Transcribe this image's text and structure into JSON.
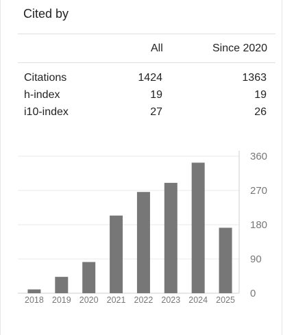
{
  "panel": {
    "title": "Cited by",
    "columns": [
      "All",
      "Since 2020"
    ],
    "rows": [
      {
        "label": "Citations",
        "all": "1424",
        "since": "1363"
      },
      {
        "label": "h-index",
        "all": "19",
        "since": "19"
      },
      {
        "label": "i10-index",
        "all": "27",
        "since": "26"
      }
    ]
  },
  "chart_data": {
    "type": "bar",
    "categories": [
      "2018",
      "2019",
      "2020",
      "2021",
      "2022",
      "2023",
      "2024",
      "2025"
    ],
    "values": [
      10,
      43,
      82,
      204,
      266,
      290,
      343,
      172
    ],
    "ylim": [
      0,
      360
    ],
    "yticks": [
      "360",
      "270",
      "180",
      "90",
      "0"
    ],
    "ytick_values": [
      360,
      270,
      180,
      90,
      0
    ],
    "bar_color": "#777777",
    "grid": true,
    "title": "",
    "xlabel": "",
    "ylabel": ""
  }
}
